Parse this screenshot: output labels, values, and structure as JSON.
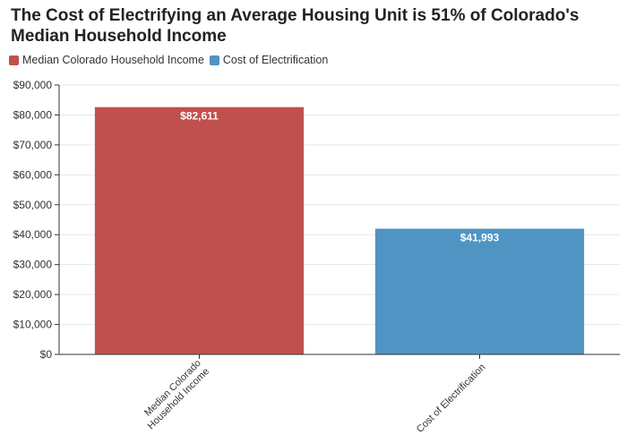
{
  "title": "The Cost of Electrifying an Average Housing Unit is 51% of Colorado's Median Household Income",
  "colors": {
    "median": "#c0504d",
    "cost": "#4f94c2",
    "grid": "#e6e6e6",
    "axis": "#333333"
  },
  "chart_data": {
    "type": "bar",
    "title": "The Cost of Electrifying an Average Housing Unit is 51% of Colorado's Median Household Income",
    "categories": [
      "Median Colorado Household Income",
      "Cost of Electrification"
    ],
    "tick_lines": [
      [
        "Median Colorado",
        "Household Income"
      ],
      [
        "Cost of Electrification"
      ]
    ],
    "values": [
      82611,
      41993
    ],
    "value_labels": [
      "$82,611",
      "$41,993"
    ],
    "legend": [
      "Median Colorado Household Income",
      "Cost of Electrification"
    ],
    "legend_position": "top-left",
    "ylim": [
      0,
      90000
    ],
    "yticks": [
      0,
      10000,
      20000,
      30000,
      40000,
      50000,
      60000,
      70000,
      80000,
      90000
    ],
    "ytick_labels": [
      "$0",
      "$10,000",
      "$20,000",
      "$30,000",
      "$40,000",
      "$50,000",
      "$60,000",
      "$70,000",
      "$80,000",
      "$90,000"
    ],
    "grid": true,
    "xlabel": "",
    "ylabel": ""
  }
}
